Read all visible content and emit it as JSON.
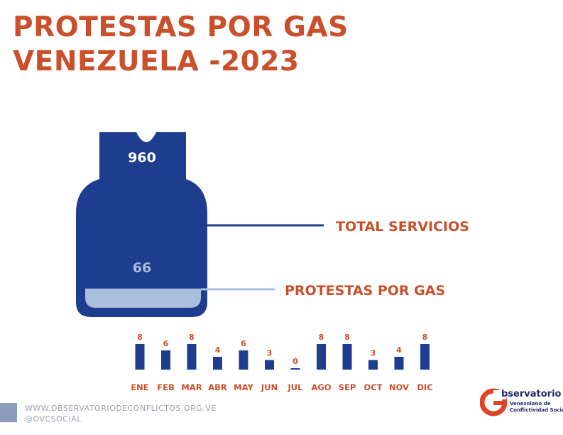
{
  "title_line1": "PROTESTAS POR GAS",
  "title_line2": "VENEZUELA -2023",
  "tank": {
    "total_value": "960",
    "total_label": "TOTAL SERVICIOS",
    "gas_value": "66",
    "gas_label": "PROTESTAS POR GAS"
  },
  "colors": {
    "accent": "#c9502b",
    "navy": "#1f3d8f",
    "light_blue": "#a9bfdc",
    "footer_gray": "#9aa1ad"
  },
  "chart_data": {
    "type": "bar",
    "categories": [
      "ENE",
      "FEB",
      "MAR",
      "ABR",
      "MAY",
      "JUN",
      "JUL",
      "AGO",
      "SEP",
      "OCT",
      "NOV",
      "DIC"
    ],
    "values": [
      8,
      6,
      8,
      4,
      6,
      3,
      0,
      8,
      8,
      3,
      4,
      8
    ],
    "ylim": [
      0,
      8
    ],
    "grid": false,
    "bar_color": "#1f3d8f",
    "label_color": "#c9502b"
  },
  "footer": {
    "url": "WWW.OBSERVATORIODECONFLICTOS.ORG.VE",
    "handle": "@OVCSOCIAL"
  },
  "logo": {
    "name": "bservatorio",
    "sub1": "Venezolano de",
    "sub2": "Conflictividad Social"
  }
}
